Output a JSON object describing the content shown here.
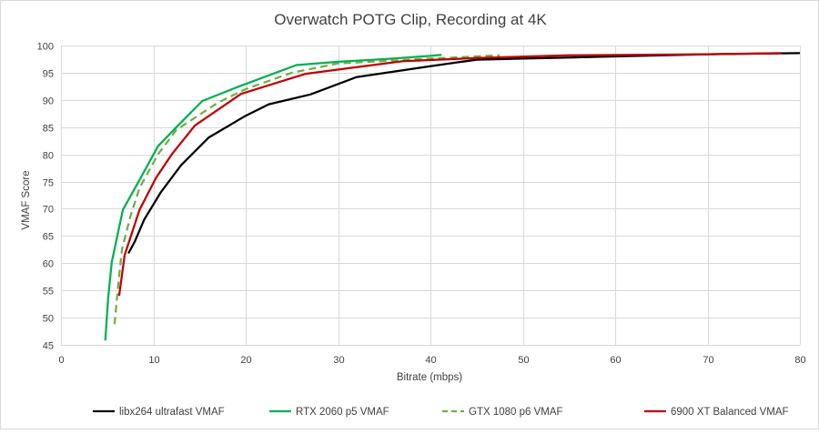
{
  "chart_data": {
    "type": "line",
    "title": "Overwatch POTG Clip, Recording at 4K",
    "xlabel": "Bitrate (mbps)",
    "ylabel": "VMAF Score",
    "xlim": [
      0,
      80
    ],
    "ylim": [
      45,
      100
    ],
    "xticks": [
      0,
      10,
      20,
      30,
      40,
      50,
      60,
      70,
      80
    ],
    "yticks": [
      45,
      50,
      55,
      60,
      65,
      70,
      75,
      80,
      85,
      90,
      95,
      100
    ],
    "grid": true,
    "legend_position": "bottom",
    "series": [
      {
        "name": "libx264 ultrafast VMAF",
        "color": "#000000",
        "dash": "solid",
        "points": [
          [
            7.3,
            61.8
          ],
          [
            8,
            64
          ],
          [
            9,
            68
          ],
          [
            10.8,
            73
          ],
          [
            13,
            78
          ],
          [
            16,
            83.1
          ],
          [
            20,
            87.1
          ],
          [
            22.5,
            89.2
          ],
          [
            27,
            91
          ],
          [
            32,
            94.2
          ],
          [
            40,
            96.2
          ],
          [
            45,
            97.4
          ],
          [
            50,
            97.6
          ],
          [
            60,
            98
          ],
          [
            70,
            98.4
          ],
          [
            80,
            98.6
          ]
        ]
      },
      {
        "name": "RTX 2060 p5 VMAF",
        "color": "#00b050",
        "dash": "solid",
        "points": [
          [
            4.8,
            45.8
          ],
          [
            5.1,
            53.5
          ],
          [
            5.5,
            60.2
          ],
          [
            6.7,
            69.8
          ],
          [
            8.5,
            75.3
          ],
          [
            10.5,
            81.5
          ],
          [
            12.5,
            85
          ],
          [
            15.3,
            89.8
          ],
          [
            19,
            92.3
          ],
          [
            25.5,
            96.4
          ],
          [
            30,
            97
          ],
          [
            35,
            97.5
          ],
          [
            40,
            98.1
          ],
          [
            41.2,
            98.3
          ]
        ]
      },
      {
        "name": "GTX 1080 p6 VMAF",
        "color": "#70ad47",
        "dash": "dashed",
        "points": [
          [
            5.8,
            48.8
          ],
          [
            6.2,
            56
          ],
          [
            6.6,
            62.5
          ],
          [
            7.5,
            68.5
          ],
          [
            8.5,
            73.8
          ],
          [
            10.5,
            80
          ],
          [
            12.5,
            84.5
          ],
          [
            17,
            89.5
          ],
          [
            20,
            92
          ],
          [
            25,
            95
          ],
          [
            30,
            96.7
          ],
          [
            40,
            97.6
          ],
          [
            47.5,
            98.2
          ]
        ]
      },
      {
        "name": "6900 XT Balanced VMAF",
        "color": "#c00000",
        "dash": "solid",
        "points": [
          [
            6.3,
            54
          ],
          [
            6.9,
            61.5
          ],
          [
            8.5,
            69.8
          ],
          [
            10.3,
            75.7
          ],
          [
            12,
            80
          ],
          [
            14.5,
            85.3
          ],
          [
            19.5,
            91.1
          ],
          [
            26.5,
            94.8
          ],
          [
            31,
            95.8
          ],
          [
            37,
            97.1
          ],
          [
            45,
            97.7
          ],
          [
            55,
            98.2
          ],
          [
            70,
            98.4
          ],
          [
            78,
            98.6
          ]
        ]
      }
    ]
  }
}
